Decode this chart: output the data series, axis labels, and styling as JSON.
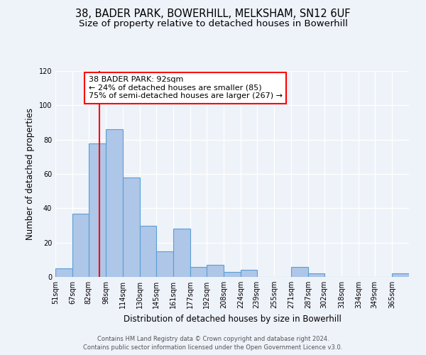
{
  "title": "38, BADER PARK, BOWERHILL, MELKSHAM, SN12 6UF",
  "subtitle": "Size of property relative to detached houses in Bowerhill",
  "xlabel": "Distribution of detached houses by size in Bowerhill",
  "ylabel": "Number of detached properties",
  "bin_labels": [
    "51sqm",
    "67sqm",
    "82sqm",
    "98sqm",
    "114sqm",
    "130sqm",
    "145sqm",
    "161sqm",
    "177sqm",
    "192sqm",
    "208sqm",
    "224sqm",
    "239sqm",
    "255sqm",
    "271sqm",
    "287sqm",
    "302sqm",
    "318sqm",
    "334sqm",
    "349sqm",
    "365sqm"
  ],
  "bin_edges": [
    51,
    67,
    82,
    98,
    114,
    130,
    145,
    161,
    177,
    192,
    208,
    224,
    239,
    255,
    271,
    287,
    302,
    318,
    334,
    349,
    365,
    381
  ],
  "bar_heights": [
    5,
    37,
    78,
    86,
    58,
    30,
    15,
    28,
    6,
    7,
    3,
    4,
    0,
    0,
    6,
    2,
    0,
    0,
    0,
    0,
    2
  ],
  "bar_color": "#aec6e8",
  "bar_edge_color": "#5a9fd4",
  "property_value": 92,
  "red_line_color": "#ff0000",
  "annotation_line1": "38 BADER PARK: 92sqm",
  "annotation_line2": "← 24% of detached houses are smaller (85)",
  "annotation_line3": "75% of semi-detached houses are larger (267) →",
  "annotation_box_color": "#ffffff",
  "annotation_box_edge_color": "#ff0000",
  "ylim": [
    0,
    120
  ],
  "yticks": [
    0,
    20,
    40,
    60,
    80,
    100,
    120
  ],
  "footer_line1": "Contains HM Land Registry data © Crown copyright and database right 2024.",
  "footer_line2": "Contains public sector information licensed under the Open Government Licence v3.0.",
  "bg_color": "#eef2f9",
  "grid_color": "#ffffff",
  "title_fontsize": 10.5,
  "subtitle_fontsize": 9.5,
  "tick_fontsize": 7,
  "ylabel_fontsize": 8.5,
  "xlabel_fontsize": 8.5,
  "annotation_fontsize": 8,
  "footer_fontsize": 6
}
